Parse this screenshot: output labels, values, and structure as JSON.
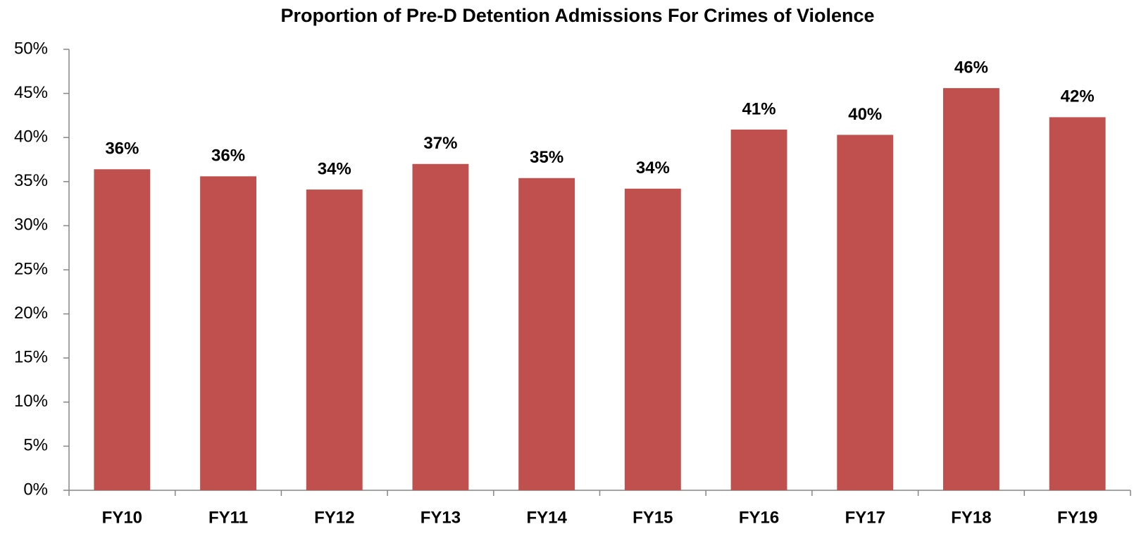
{
  "chart_data": {
    "type": "bar",
    "title": "Proportion of Pre-D Detention Admissions For Crimes of Violence",
    "categories": [
      "FY10",
      "FY11",
      "FY12",
      "FY13",
      "FY14",
      "FY15",
      "FY16",
      "FY17",
      "FY18",
      "FY19"
    ],
    "values": [
      36.4,
      35.6,
      34.1,
      37.0,
      35.4,
      34.2,
      40.9,
      40.3,
      45.6,
      42.3
    ],
    "value_labels": [
      "36%",
      "36%",
      "34%",
      "37%",
      "35%",
      "34%",
      "41%",
      "40%",
      "46%",
      "42%"
    ],
    "color": "#c0504d",
    "ylim": [
      0,
      50
    ],
    "yticks": [
      {
        "value": 0,
        "label": "0%"
      },
      {
        "value": 5,
        "label": "5%"
      },
      {
        "value": 10,
        "label": "10%"
      },
      {
        "value": 15,
        "label": "15%"
      },
      {
        "value": 20,
        "label": "20%"
      },
      {
        "value": 25,
        "label": "25%"
      },
      {
        "value": 30,
        "label": "30%"
      },
      {
        "value": 35,
        "label": "35%"
      },
      {
        "value": 40,
        "label": "40%"
      },
      {
        "value": 45,
        "label": "45%"
      },
      {
        "value": 50,
        "label": "50%"
      }
    ],
    "grid": false
  }
}
